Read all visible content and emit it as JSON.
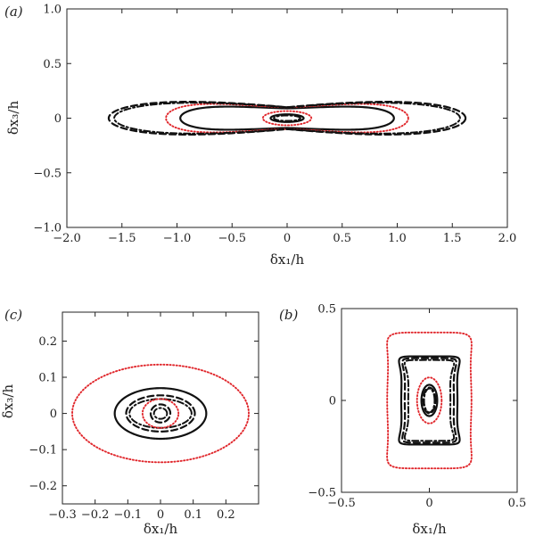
{
  "colors": {
    "black": "#111111",
    "red": "#e0262b"
  },
  "chart_data": [
    {
      "type": "line",
      "panel_label": "(a)",
      "xlabel": "δx₁/h",
      "ylabel": "δx₃/h",
      "xlim": [
        -2.0,
        2.0
      ],
      "ylim": [
        -1.0,
        1.0
      ],
      "xticks": [
        -2.0,
        -1.5,
        -1.0,
        -0.5,
        0,
        0.5,
        1.0,
        1.5,
        2.0
      ],
      "xtick_labels": [
        "−2.0",
        "−1.5",
        "−1.0",
        "−0.5",
        "0",
        "0.5",
        "1.0",
        "1.5",
        "2.0"
      ],
      "yticks": [
        1.0,
        0.5,
        0,
        -0.5,
        -1.0
      ],
      "ytick_labels": [
        "1.0",
        "0.5",
        "0",
        "−0.5",
        "−1.0"
      ],
      "grid": false,
      "contours": [
        {
          "style": "solid",
          "shape": "ellipse",
          "cx": 0,
          "cy": 0,
          "a": 0.15,
          "b": 0.035
        },
        {
          "style": "dashdot",
          "shape": "ellipse",
          "cx": 0,
          "cy": 0,
          "a": 0.12,
          "b": 0.025
        },
        {
          "style": "dotted_red",
          "shape": "ellipse",
          "cx": 0,
          "cy": 0,
          "a": 0.22,
          "b": 0.065
        },
        {
          "style": "solid",
          "shape": "peanut",
          "a": 0.97,
          "b": 0.18,
          "waist": 0.09,
          "tip": 0.0,
          "p": 1.5
        },
        {
          "style": "dotted_red",
          "shape": "peanut",
          "a": 1.1,
          "b": 0.235,
          "waist": 0.1,
          "tip": 0.0,
          "p": 1.5
        },
        {
          "style": "dashed",
          "shape": "peanut",
          "a": 1.62,
          "b": 0.245,
          "waist": 0.1,
          "tip": 0.0,
          "p": 1.0
        },
        {
          "style": "dashdot",
          "shape": "peanut",
          "a": 1.57,
          "b": 0.225,
          "waist": 0.1,
          "tip": 0.0,
          "p": 1.0
        }
      ]
    },
    {
      "type": "line",
      "panel_label": "(c)",
      "xlabel": "δx₁/h",
      "ylabel": "δx₃/h",
      "xlim": [
        -0.3,
        0.3
      ],
      "ylim": [
        -0.25,
        0.28
      ],
      "xticks": [
        -0.3,
        -0.2,
        -0.1,
        0,
        0.1,
        0.2
      ],
      "xtick_labels": [
        "−0.3",
        "−0.2",
        "−0.1",
        "0",
        "0.1",
        "0.2"
      ],
      "yticks": [
        0.2,
        0.1,
        0,
        -0.1,
        -0.2
      ],
      "ytick_labels": [
        "0.2",
        "0.1",
        "0",
        "−0.1",
        "−0.2"
      ],
      "grid": false,
      "contours": [
        {
          "style": "dotted_red",
          "shape": "ellipse",
          "cx": 0,
          "cy": 0,
          "a": 0.27,
          "b": 0.135
        },
        {
          "style": "solid",
          "shape": "ellipse",
          "cx": 0,
          "cy": 0,
          "a": 0.14,
          "b": 0.07
        },
        {
          "style": "dashed",
          "shape": "ellipse",
          "cx": 0,
          "cy": 0,
          "a": 0.105,
          "b": 0.05
        },
        {
          "style": "dashdot",
          "shape": "ellipse",
          "cx": 0,
          "cy": 0,
          "a": 0.095,
          "b": 0.04
        },
        {
          "style": "dotted_red",
          "shape": "ellipse",
          "cx": 0,
          "cy": 0,
          "a": 0.055,
          "b": 0.04
        },
        {
          "style": "dashed",
          "shape": "ellipse",
          "cx": 0,
          "cy": 0,
          "a": 0.03,
          "b": 0.025
        },
        {
          "style": "dashdot",
          "shape": "ellipse",
          "cx": 0,
          "cy": 0,
          "a": 0.02,
          "b": 0.015
        }
      ]
    },
    {
      "type": "line",
      "panel_label": "(b)",
      "xlabel": "δx₁/h",
      "ylabel": "",
      "xlim": [
        -0.5,
        0.5
      ],
      "ylim": [
        -0.5,
        0.5
      ],
      "xticks": [
        -0.5,
        0,
        0.5
      ],
      "xtick_labels": [
        "−0.5",
        "0",
        "0.5"
      ],
      "yticks": [
        0.5,
        0,
        -0.5
      ],
      "ytick_labels": [
        "0.5",
        "0",
        "−0.5"
      ],
      "grid": false,
      "contours": [
        {
          "style": "dotted_red",
          "shape": "hourglass",
          "a": 0.35,
          "waist": 0.24,
          "b": 0.37,
          "p": 6
        },
        {
          "style": "solid",
          "shape": "hourglass",
          "a": 0.24,
          "waist": 0.16,
          "b": 0.24,
          "p": 8
        },
        {
          "style": "dashed",
          "shape": "hourglass",
          "a": 0.215,
          "waist": 0.14,
          "b": 0.23,
          "p": 8
        },
        {
          "style": "dashdot",
          "shape": "hourglass",
          "a": 0.2,
          "waist": 0.12,
          "b": 0.22,
          "p": 8
        },
        {
          "style": "dotted_red",
          "shape": "ellipse",
          "cx": 0,
          "cy": 0,
          "a": 0.07,
          "b": 0.125
        },
        {
          "style": "solid",
          "shape": "ellipse",
          "cx": 0,
          "cy": 0,
          "a": 0.045,
          "b": 0.085
        },
        {
          "style": "dashed",
          "shape": "ellipse",
          "cx": 0,
          "cy": 0,
          "a": 0.035,
          "b": 0.07
        },
        {
          "style": "dashdot",
          "shape": "ellipse",
          "cx": 0,
          "cy": 0,
          "a": 0.03,
          "b": 0.065
        }
      ]
    }
  ]
}
